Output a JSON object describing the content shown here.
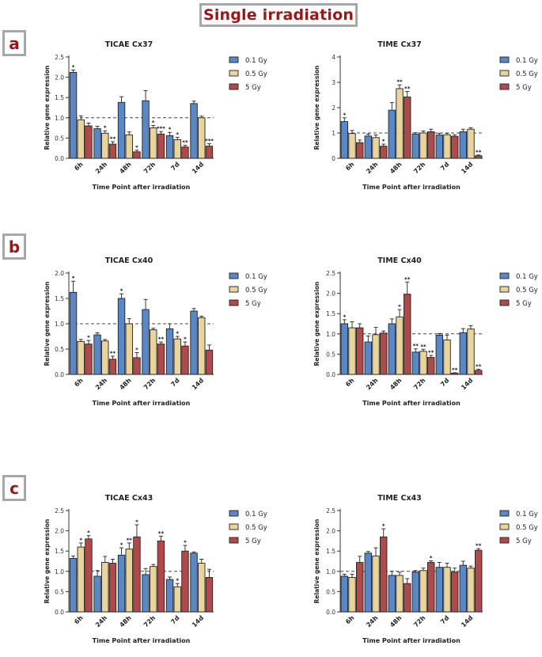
{
  "page_title": "Single irradiation",
  "panels": [
    "a",
    "b",
    "c"
  ],
  "chart_data": [
    {
      "type": "bar",
      "title": "TICAE Cx37",
      "xlabel": "Time Point after irradiation",
      "ylabel": "Relative gene expression",
      "ylim": [
        0,
        2.5
      ],
      "yticks": [
        "0.0",
        "0.5",
        "1.0",
        "1.5",
        "2.0",
        "2.5"
      ],
      "categories": [
        "6h",
        "24h",
        "48h",
        "72h",
        "7d",
        "14d"
      ],
      "reference_line": 1.0,
      "series": [
        {
          "name": "0.1 Gy",
          "color": "#5b87c4",
          "values": [
            2.12,
            0.73,
            1.38,
            1.42,
            0.56,
            1.35
          ],
          "errors": [
            0.06,
            0.06,
            0.14,
            0.25,
            0.08,
            0.06
          ],
          "sig": [
            "*",
            "",
            "",
            "",
            "*",
            ""
          ]
        },
        {
          "name": "0.5 Gy",
          "color": "#e8d49c",
          "values": [
            0.95,
            0.62,
            0.58,
            0.75,
            0.46,
            1.0
          ],
          "errors": [
            0.1,
            0.06,
            0.07,
            0.06,
            0.06,
            0.04
          ],
          "sig": [
            "",
            "*",
            "",
            "*",
            "*",
            ""
          ]
        },
        {
          "name": "5 Gy",
          "color": "#b04a4a",
          "values": [
            0.8,
            0.35,
            0.16,
            0.6,
            0.28,
            0.3
          ],
          "errors": [
            0.07,
            0.06,
            0.04,
            0.06,
            0.04,
            0.06
          ],
          "sig": [
            "",
            "**",
            "*",
            "***",
            "**",
            "***"
          ]
        }
      ]
    },
    {
      "type": "bar",
      "title": "TIME Cx37",
      "xlabel": "Time Point after irradiation",
      "ylabel": "Relative gene expression",
      "ylim": [
        0,
        4
      ],
      "yticks": [
        "0",
        "1",
        "2",
        "3",
        "4"
      ],
      "categories": [
        "6h",
        "24h",
        "48h",
        "72h",
        "7d",
        "14d"
      ],
      "reference_line": 1.0,
      "series": [
        {
          "name": "0.1 Gy",
          "color": "#5b87c4",
          "values": [
            1.45,
            0.88,
            1.9,
            0.95,
            0.92,
            1.05
          ],
          "errors": [
            0.15,
            0.08,
            0.3,
            0.06,
            0.07,
            0.1
          ],
          "sig": [
            "*",
            "",
            "",
            "",
            "",
            ""
          ]
        },
        {
          "name": "0.5 Gy",
          "color": "#e8d49c",
          "values": [
            0.98,
            0.82,
            2.75,
            1.0,
            0.93,
            1.15
          ],
          "errors": [
            0.12,
            0.1,
            0.15,
            0.08,
            0.06,
            0.06
          ],
          "sig": [
            "",
            "",
            "**",
            "",
            "",
            ""
          ]
        },
        {
          "name": "5 Gy",
          "color": "#b04a4a",
          "values": [
            0.62,
            0.48,
            2.42,
            1.05,
            0.87,
            0.1
          ],
          "errors": [
            0.1,
            0.08,
            0.22,
            0.1,
            0.06,
            0.03
          ],
          "sig": [
            "",
            "*",
            "**",
            "",
            "",
            "**"
          ]
        }
      ]
    },
    {
      "type": "bar",
      "title": "TICAE Cx40",
      "xlabel": "Time Point after irradiation",
      "ylabel": "Relative gene expression",
      "ylim": [
        0,
        2.0
      ],
      "yticks": [
        "0.0",
        "0.5",
        "1.0",
        "1.5",
        "2.0"
      ],
      "categories": [
        "6h",
        "24h",
        "48h",
        "72h",
        "7d",
        "14d"
      ],
      "reference_line": 1.0,
      "series": [
        {
          "name": "0.1 Gy",
          "color": "#5b87c4",
          "values": [
            1.62,
            0.78,
            1.5,
            1.28,
            0.9,
            1.25
          ],
          "errors": [
            0.22,
            0.04,
            0.09,
            0.2,
            0.1,
            0.05
          ],
          "sig": [
            "*",
            "",
            "*",
            "",
            "",
            ""
          ]
        },
        {
          "name": "0.5 Gy",
          "color": "#e8d49c",
          "values": [
            0.65,
            0.66,
            1.0,
            0.88,
            0.7,
            1.12
          ],
          "errors": [
            0.04,
            0.03,
            0.1,
            0.03,
            0.05,
            0.03
          ],
          "sig": [
            "",
            "",
            "",
            "",
            "*",
            ""
          ]
        },
        {
          "name": "5 Gy",
          "color": "#b04a4a",
          "values": [
            0.6,
            0.3,
            0.33,
            0.6,
            0.56,
            0.48
          ],
          "errors": [
            0.07,
            0.06,
            0.1,
            0.04,
            0.08,
            0.1
          ],
          "sig": [
            "*",
            "**",
            "*",
            "**",
            "*",
            ""
          ]
        }
      ]
    },
    {
      "type": "bar",
      "title": "TIME Cx40",
      "xlabel": "Time Point after irradiation",
      "ylabel": "Relative gene expression",
      "ylim": [
        0,
        2.5
      ],
      "yticks": [
        "0.0",
        "0.5",
        "1.0",
        "1.5",
        "2.0",
        "2.5"
      ],
      "categories": [
        "6h",
        "24h",
        "48h",
        "72h",
        "7d",
        "14d"
      ],
      "reference_line": 1.0,
      "series": [
        {
          "name": "0.1 Gy",
          "color": "#5b87c4",
          "values": [
            1.25,
            0.8,
            1.25,
            0.55,
            0.97,
            1.03
          ],
          "errors": [
            0.1,
            0.15,
            0.12,
            0.08,
            0.04,
            0.1
          ],
          "sig": [
            "*",
            "",
            "",
            "**",
            "",
            ""
          ]
        },
        {
          "name": "0.5 Gy",
          "color": "#e8d49c",
          "values": [
            1.15,
            0.98,
            1.42,
            0.57,
            0.85,
            1.12
          ],
          "errors": [
            0.15,
            0.18,
            0.18,
            0.05,
            0.12,
            0.08
          ],
          "sig": [
            "",
            "",
            "*",
            "**",
            "",
            ""
          ]
        },
        {
          "name": "5 Gy",
          "color": "#b04a4a",
          "values": [
            1.15,
            1.02,
            1.98,
            0.42,
            0.03,
            0.1
          ],
          "errors": [
            0.1,
            0.05,
            0.3,
            0.05,
            0.01,
            0.03
          ],
          "sig": [
            "",
            "",
            "**",
            "**",
            "**",
            "**"
          ]
        }
      ]
    },
    {
      "type": "bar",
      "title": "TICAE Cx43",
      "xlabel": "Time Point after irradiation",
      "ylabel": "Relative gene expression",
      "ylim": [
        0,
        2.5
      ],
      "yticks": [
        "0.0",
        "0.5",
        "1.0",
        "1.5",
        "2.0",
        "2.5"
      ],
      "categories": [
        "6h",
        "24h",
        "48h",
        "72h",
        "7d",
        "14d"
      ],
      "reference_line": 1.0,
      "series": [
        {
          "name": "0.1 Gy",
          "color": "#5b87c4",
          "values": [
            1.32,
            0.88,
            1.4,
            0.92,
            0.8,
            1.45
          ],
          "errors": [
            0.06,
            0.14,
            0.18,
            0.15,
            0.06,
            0.03
          ],
          "sig": [
            "",
            "",
            "*",
            "",
            "",
            ""
          ]
        },
        {
          "name": "0.5 Gy",
          "color": "#e8d49c",
          "values": [
            1.6,
            1.22,
            1.55,
            1.12,
            0.62,
            1.2
          ],
          "errors": [
            0.1,
            0.15,
            0.15,
            0.05,
            0.08,
            0.1
          ],
          "sig": [
            "*",
            "",
            "**",
            "",
            "*",
            ""
          ]
        },
        {
          "name": "5 Gy",
          "color": "#b04a4a",
          "values": [
            1.8,
            1.2,
            1.85,
            1.75,
            1.5,
            0.85
          ],
          "errors": [
            0.08,
            0.1,
            0.3,
            0.12,
            0.14,
            0.2
          ],
          "sig": [
            "*",
            "",
            "*",
            "**",
            "*",
            ""
          ]
        }
      ]
    },
    {
      "type": "bar",
      "title": "TIME Cx43",
      "xlabel": "Time Point after irradiation",
      "ylabel": "Relative gene expression",
      "ylim": [
        0,
        2.5
      ],
      "yticks": [
        "0.0",
        "0.5",
        "1.0",
        "1.5",
        "2.0",
        "2.5"
      ],
      "categories": [
        "6h",
        "24h",
        "48h",
        "72h",
        "7d",
        "14d"
      ],
      "reference_line": 1.0,
      "series": [
        {
          "name": "0.1 Gy",
          "color": "#5b87c4",
          "values": [
            0.88,
            1.45,
            0.9,
            0.98,
            1.1,
            1.15
          ],
          "errors": [
            0.05,
            0.04,
            0.1,
            0.04,
            0.12,
            0.1
          ],
          "sig": [
            "",
            "",
            "",
            "",
            "",
            ""
          ]
        },
        {
          "name": "0.5 Gy",
          "color": "#e8d49c",
          "values": [
            0.85,
            1.38,
            0.9,
            1.02,
            1.1,
            1.08
          ],
          "errors": [
            0.08,
            0.2,
            0.08,
            0.06,
            0.1,
            0.05
          ],
          "sig": [
            "",
            "",
            "",
            "",
            "",
            ""
          ]
        },
        {
          "name": "5 Gy",
          "color": "#b04a4a",
          "values": [
            1.22,
            1.85,
            0.7,
            1.22,
            0.98,
            1.52
          ],
          "errors": [
            0.15,
            0.2,
            0.12,
            0.04,
            0.1,
            0.04
          ],
          "sig": [
            "",
            "*",
            "",
            "*",
            "",
            "**"
          ]
        }
      ]
    }
  ]
}
